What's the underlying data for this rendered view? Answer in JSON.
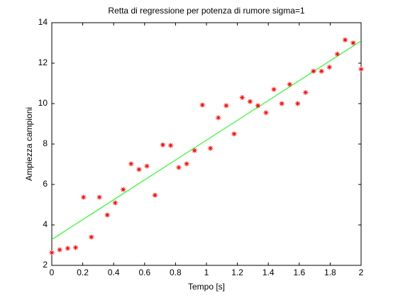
{
  "chart_data": {
    "type": "scatter",
    "title": "Retta di regressione per potenza di rumore sigma=1",
    "x_label": "Tempo [s]",
    "y_label": "Ampiezza campioni",
    "x": [
      0,
      0.051,
      0.103,
      0.154,
      0.205,
      0.256,
      0.308,
      0.359,
      0.41,
      0.462,
      0.513,
      0.564,
      0.615,
      0.667,
      0.718,
      0.769,
      0.821,
      0.872,
      0.923,
      0.974,
      1.026,
      1.077,
      1.128,
      1.179,
      1.231,
      1.282,
      1.333,
      1.385,
      1.436,
      1.487,
      1.538,
      1.59,
      1.641,
      1.692,
      1.744,
      1.795,
      1.846,
      1.897,
      1.949,
      2
    ],
    "series": [
      {
        "color": "#ff0000",
        "values": [
          2.63,
          2.77,
          2.84,
          2.88,
          5.37,
          3.4,
          5.37,
          4.49,
          5.09,
          5.75,
          7.02,
          6.74,
          6.91,
          5.47,
          7.96,
          7.93,
          6.84,
          7.02,
          7.68,
          9.93,
          7.79,
          9.3,
          9.9,
          8.5,
          10.3,
          10.1,
          9.9,
          9.55,
          10.7,
          10.0,
          10.95,
          10.0,
          10.55,
          11.6,
          11.6,
          11.8,
          12.45,
          13.15,
          13.0,
          11.7
        ]
      }
    ],
    "fit": {
      "color": "#00ff00",
      "x": [
        0,
        2
      ],
      "values": [
        3.28,
        13.1
      ]
    },
    "xlim": [
      0,
      2
    ],
    "xticks": [
      0,
      0.2,
      0.4,
      0.6,
      0.8,
      1,
      1.2,
      1.4,
      1.6,
      1.8,
      2
    ],
    "ylim": [
      2,
      14
    ],
    "yticks": [
      2,
      4,
      6,
      8,
      10,
      12,
      14
    ]
  }
}
